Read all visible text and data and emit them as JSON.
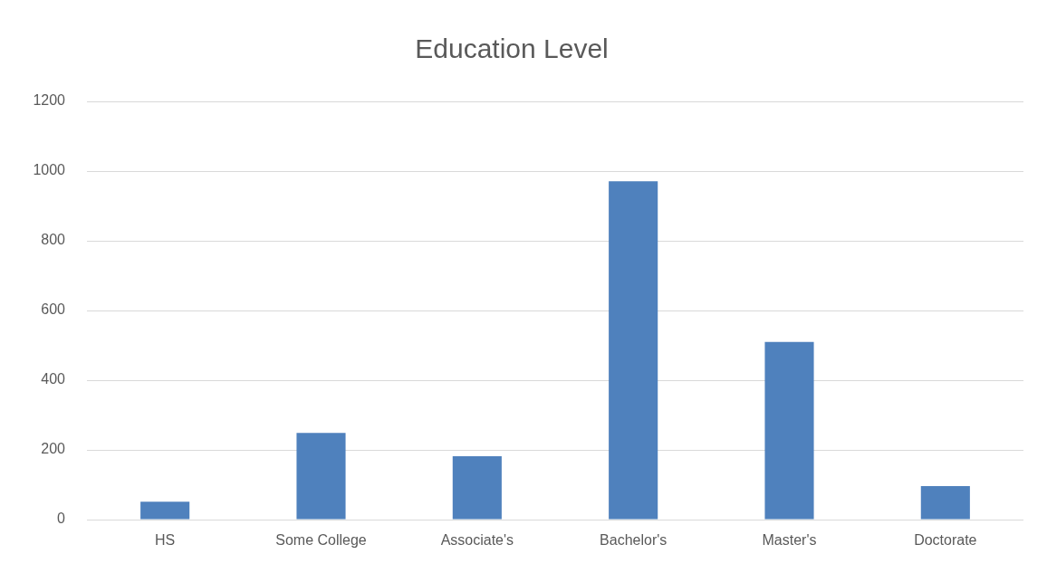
{
  "chart_data": {
    "type": "bar",
    "title": "Education Level",
    "categories": [
      "HS",
      "Some College",
      "Associate's",
      "Bachelor's",
      "Master's",
      "Doctorate"
    ],
    "values": [
      51,
      249,
      182,
      971,
      510,
      96
    ],
    "color": "#4f81bd",
    "ylim": [
      0,
      1200
    ],
    "yticks": [
      0,
      200,
      400,
      600,
      800,
      1000,
      1200
    ],
    "grid": "y"
  }
}
